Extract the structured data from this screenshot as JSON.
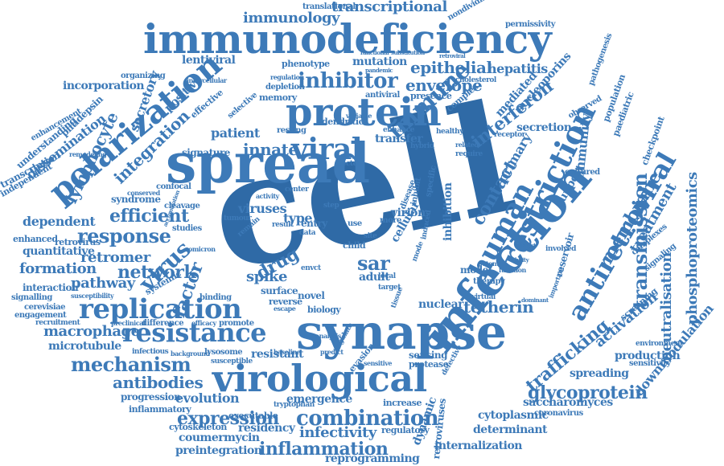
{
  "cloud": {
    "cell": "cell",
    "synapse": "synapse",
    "infection": "infection",
    "immunodeficiency": "immunodeficiency",
    "spread": "spread",
    "protein": "protein",
    "virological": "virological",
    "polarization": "polarization",
    "human": "human",
    "restriction": "restriction",
    "antiretroviral": "antiretroviral",
    "replication": "replication",
    "resistance": "resistance",
    "viral": "viral",
    "inhibitor": "inhibitor",
    "immune": "immune",
    "combination": "combination",
    "mechanism": "mechanism",
    "transmission": "transmission",
    "interferon": "interferon",
    "lymphocyte": "lymphocyte",
    "response": "response",
    "virus": "virus",
    "envelope": "envelope",
    "network": "network",
    "efficient": "efficient",
    "epithelial": "epithelial",
    "glycoprotein": "glycoprotein",
    "tetherin": "tetherin",
    "macrophage": "macrophage",
    "pathway": "pathway",
    "expression": "expression",
    "antibodies": "antibodies",
    "infectivity": "infectivity",
    "inflammation": "inflammation",
    "trafficking": "trafficking",
    "membrane": "membrane",
    "phosphoproteomics": "phosphoproteomics",
    "neutralisation": "neutralisation",
    "activation": "activation",
    "treatment": "treatment",
    "drug": "drug",
    "sar": "sar",
    "spike": "spike",
    "formation": "formation",
    "retromer": "retromer",
    "dependent": "dependent",
    "contact": "contact",
    "primary": "primary",
    "factor": "factor",
    "innate": "innate",
    "integration": "integration",
    "transcriptional": "transcriptional",
    "immunology": "immunology",
    "hepatitis": "hepatitis",
    "patient": "patient",
    "mutation": "mutation",
    "lentiviral": "lentiviral",
    "secretion": "secretion",
    "viruses": "viruses",
    "type": "type",
    "virion": "virion",
    "evolution": "evolution",
    "emergence": "emergence",
    "progression": "progression",
    "determinant": "determinant",
    "internalization": "internalization",
    "dynamic": "dynamic",
    "retroviruses": "retroviruses",
    "spreading": "spreading",
    "saccharomyces": "saccharomyces",
    "cytoplasmic": "cytoplasmic",
    "reprogramming": "reprogramming",
    "preintegration": "preintegration",
    "coumermycin": "coumermycin",
    "cytoskeleton": "cytoskeleton",
    "residency": "residency",
    "executable": "executable",
    "microtubule": "microtubule",
    "interaction": "interaction",
    "quantitative": "quantitative",
    "immunity": "immunity",
    "secretory": "secretory",
    "dissemination": "dissemination",
    "incorporation": "incorporation",
    "mediated": "mediated",
    "nucleoporins": "nucleoporins",
    "surface": "surface",
    "nuclear": "nuclear",
    "resistant": "resistant",
    "sensing": "sensing",
    "protease": "protease",
    "production": "production",
    "downmodulation": "downmodulation",
    "syndrome": "syndrome",
    "signature": "signature",
    "positive": "positive",
    "transcription": "transcription",
    "adult": "adult",
    "novel": "novel",
    "entry": "entry",
    "inhibition": "inhibition",
    "model": "model",
    "cellular": "cellular",
    "support": "support",
    "reservoir": "reservoir",
    "inflammatory": "inflammatory",
    "reverse": "reverse",
    "regulatory": "regulatory",
    "retrovirus": "retrovirus",
    "enhanced": "enhanced",
    "memory": "memory",
    "phenotype": "phenotype",
    "dendritic": "dendritic",
    "transfer": "transfer",
    "presence": "presence",
    "antiviral": "antiviral",
    "depletion": "depletion",
    "resting": "resting",
    "complex": "complex",
    "therapy": "therapy",
    "tumour": "tumour",
    "studies": "studies",
    "lysosome": "lysosome",
    "infectious": "infectious",
    "difference": "difference",
    "promote": "promote",
    "binding": "binding",
    "systemic": "systemic",
    "signalling": "signalling",
    "cerevisiae": "cerevisiae",
    "engagement": "engagement",
    "recruitment": "recruitment",
    "translational": "translational",
    "nondividing": "nondividing",
    "permissivity": "permissivity",
    "organizing": "organizing",
    "enhancement": "enhancement",
    "understanding": "understanding",
    "independent": "independent",
    "confocal": "confocal",
    "cleavage": "cleavage",
    "effective": "effective",
    "selective": "selective",
    "pathogenesis": "pathogenesis",
    "paediatric": "paediatric",
    "population": "population",
    "checkpoint": "checkpoint",
    "complexes": "complexes",
    "signaling": "signaling",
    "screening": "screening",
    "sensitivity": "sensitivity",
    "environment": "environment",
    "involved": "involved",
    "cultured": "cultured",
    "coronavirus": "coronavirus",
    "evasion": "evasion",
    "biology": "biology",
    "increase": "increase",
    "tryptophan": "tryptophan",
    "susceptible": "susceptible",
    "observed": "observed",
    "cholesterol": "cholesterol",
    "result": "result",
    "data": "data",
    "remain": "remain",
    "vector": "vector",
    "center": "center",
    "plitidepsin": "plitidepsin",
    "child": "child",
    "specific": "specific",
    "defective": "defective",
    "virtual": "virtual",
    "regulate": "regulate",
    "enhance": "enhance",
    "healthy": "healthy",
    "hybrid": "hybrid",
    "receptor": "receptor",
    "target": "target",
    "site": "site",
    "more": "more",
    "step": "step",
    "use": "use",
    "induced": "induced",
    "inhibit": "inhibit",
    "disease": "disease",
    "sensitive": "sensitive",
    "escape": "escape",
    "background": "background",
    "efficacy": "efficacy",
    "preclinical": "preclinical",
    "remodeling": "remodeling",
    "envct": "envct",
    "important": "important",
    "potent": "potent",
    "function": "function",
    "require": "require",
    "local": "local",
    "tissue": "tissue",
    "mode": "mode",
    "baseline": "baseline",
    "predict": "predict",
    "analysis": "analysis",
    "variable": "variable",
    "activity": "activity",
    "related": "related",
    "conserved": "conserved",
    "omicron": "omicron",
    "regulation": "regulation",
    "susceptibility": "susceptibility",
    "intercellular": "intercellular",
    "substitution": "substitution",
    "retroviral": "retroviral",
    "pandemic": "pandemic",
    "functional": "functional",
    "accumulation": "accumulation",
    "dominant": "dominant",
    "ability": "ability",
    "infect": "infect"
  }
}
